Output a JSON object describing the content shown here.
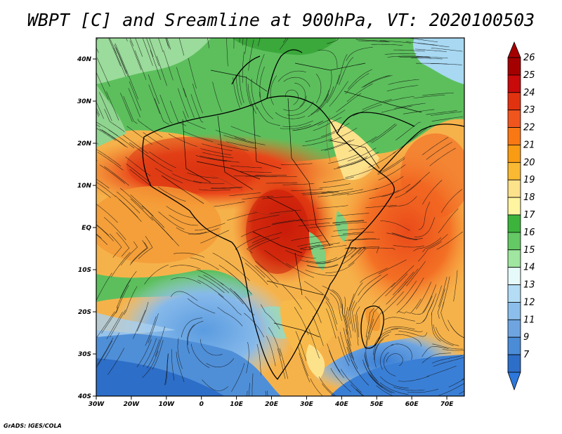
{
  "title": "WBPT [C] and Sreamline at 900hPa, VT: 2020100503",
  "credit": "GrADS: IGES/COLA",
  "map": {
    "lon_range": [
      -30,
      75
    ],
    "lat_range": [
      -40,
      45
    ],
    "lat_ticks": [
      {
        "value": 40,
        "label": "40N"
      },
      {
        "value": 30,
        "label": "30N"
      },
      {
        "value": 20,
        "label": "20N"
      },
      {
        "value": 10,
        "label": "10N"
      },
      {
        "value": 0,
        "label": "EQ"
      },
      {
        "value": -10,
        "label": "10S"
      },
      {
        "value": -20,
        "label": "20S"
      },
      {
        "value": -30,
        "label": "30S"
      },
      {
        "value": -40,
        "label": "40S"
      }
    ],
    "lon_ticks": [
      {
        "value": -30,
        "label": "30W"
      },
      {
        "value": -20,
        "label": "20W"
      },
      {
        "value": -10,
        "label": "10W"
      },
      {
        "value": 0,
        "label": "0"
      },
      {
        "value": 10,
        "label": "10E"
      },
      {
        "value": 20,
        "label": "20E"
      },
      {
        "value": 30,
        "label": "30E"
      },
      {
        "value": 40,
        "label": "40E"
      },
      {
        "value": 50,
        "label": "50E"
      },
      {
        "value": 60,
        "label": "60E"
      },
      {
        "value": 70,
        "label": "70E"
      }
    ]
  },
  "colorbar": {
    "levels": [
      {
        "label": "26",
        "color": "#a50000"
      },
      {
        "label": "25",
        "color": "#c80a0a"
      },
      {
        "label": "24",
        "color": "#e1320f"
      },
      {
        "label": "23",
        "color": "#f0551e"
      },
      {
        "label": "22",
        "color": "#fa7814"
      },
      {
        "label": "21",
        "color": "#fa9b14"
      },
      {
        "label": "20",
        "color": "#fab932"
      },
      {
        "label": "19",
        "color": "#fde28c"
      },
      {
        "label": "18",
        "color": "#fff5a0"
      },
      {
        "label": "17",
        "color": "#3cb43c"
      },
      {
        "label": "16",
        "color": "#64c864"
      },
      {
        "label": "15",
        "color": "#a0e6a0"
      },
      {
        "label": "14",
        "color": "#e6fafa"
      },
      {
        "label": "13",
        "color": "#b4dcf5"
      },
      {
        "label": "12",
        "color": "#8cbeeb"
      },
      {
        "label": "11",
        "color": "#6ea5e1"
      },
      {
        "label": "9",
        "color": "#4b8cd7"
      },
      {
        "label": "7",
        "color": "#2d6ec8"
      }
    ],
    "top_arrow_color": "#a50000",
    "bottom_arrow_color": "#2d78dc"
  }
}
